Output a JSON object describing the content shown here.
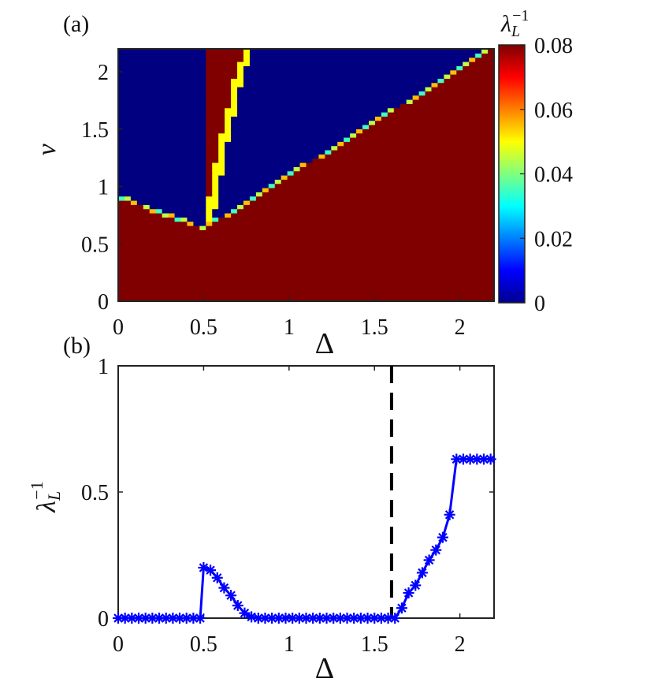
{
  "chart_data": [
    {
      "panel_label": "(a)",
      "type": "heatmap",
      "xlabel": "Δ",
      "ylabel": "v",
      "xlim": [
        0,
        2.2
      ],
      "ylim": [
        0,
        2.2
      ],
      "x_ticks": [
        "0",
        "0.5",
        "1",
        "1.5",
        "2"
      ],
      "y_ticks": [
        "0",
        "0.5",
        "1",
        "1.5",
        "2"
      ],
      "colorbar": {
        "label_base": "λ",
        "label_sub": "L",
        "label_sup": "−1",
        "range": [
          0,
          0.08
        ],
        "ticks": [
          "0",
          "0.02",
          "0.04",
          "0.06",
          "0.08"
        ],
        "colormap": "jet"
      },
      "regions": {
        "high_value": 0.08,
        "low_value": 0,
        "lower_boundary": [
          [
            0,
            0.9
          ],
          [
            0.5,
            0.62
          ],
          [
            2.2,
            2.2
          ]
        ],
        "wedge_left_edge": [
          [
            0.5,
            0.62
          ],
          [
            0.5,
            2.2
          ]
        ],
        "stripe": [
          [
            0.53,
            0.72
          ],
          [
            0.6,
            1.3
          ],
          [
            0.7,
            1.95
          ],
          [
            0.76,
            2.2
          ]
        ]
      }
    },
    {
      "panel_label": "(b)",
      "type": "line",
      "xlabel": "Δ",
      "ylabel_base": "λ",
      "ylabel_sub": "L",
      "ylabel_sup": "−1",
      "xlim": [
        0,
        2.2
      ],
      "ylim": [
        0,
        1
      ],
      "x_ticks": [
        "0",
        "0.5",
        "1",
        "1.5",
        "2"
      ],
      "y_ticks": [
        "0",
        "0.5",
        "1"
      ],
      "series": [
        {
          "color": "#0000ff",
          "marker": "asterisk",
          "x": [
            0,
            0.04,
            0.08,
            0.12,
            0.16,
            0.2,
            0.24,
            0.28,
            0.32,
            0.36,
            0.4,
            0.44,
            0.48,
            0.5,
            0.54,
            0.58,
            0.62,
            0.66,
            0.7,
            0.74,
            0.78,
            0.82,
            0.86,
            0.9,
            0.94,
            0.98,
            1.02,
            1.06,
            1.1,
            1.14,
            1.18,
            1.22,
            1.26,
            1.3,
            1.34,
            1.38,
            1.42,
            1.46,
            1.5,
            1.54,
            1.58,
            1.62,
            1.66,
            1.7,
            1.74,
            1.78,
            1.82,
            1.86,
            1.9,
            1.94,
            1.98,
            2.02,
            2.06,
            2.1,
            2.14,
            2.18
          ],
          "y": [
            0,
            0,
            0,
            0,
            0,
            0,
            0,
            0,
            0,
            0,
            0,
            0,
            0,
            0.2,
            0.19,
            0.16,
            0.12,
            0.09,
            0.05,
            0.02,
            0.005,
            0,
            0,
            0,
            0,
            0,
            0,
            0,
            0,
            0,
            0,
            0,
            0,
            0,
            0,
            0,
            0,
            0,
            0,
            0,
            0,
            0,
            0.04,
            0.1,
            0.13,
            0.18,
            0.23,
            0.27,
            0.32,
            0.41,
            0.63,
            0.63,
            0.63,
            0.63,
            0.63,
            0.63
          ]
        }
      ],
      "vertical_line": {
        "x": 1.6,
        "style": "dashed",
        "color": "#000000"
      }
    }
  ]
}
